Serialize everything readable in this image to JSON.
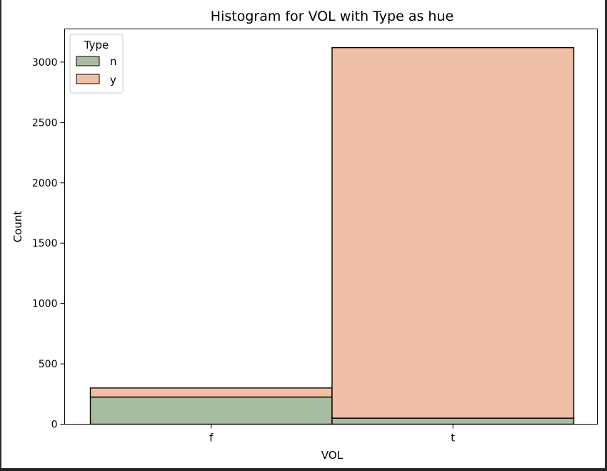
{
  "chart_data": {
    "type": "bar",
    "title": "Histogram for VOL with Type as hue",
    "xlabel": "VOL",
    "ylabel": "Count",
    "categories": [
      "f",
      "t"
    ],
    "series": [
      {
        "name": "n",
        "values": [
          225,
          50
        ],
        "color": "#a8bca0"
      },
      {
        "name": "y",
        "values": [
          75,
          3070
        ],
        "color": "#f0c0a6"
      }
    ],
    "stacked": true,
    "ylim": [
      0,
      3275
    ],
    "yticks": [
      "0",
      "500",
      "1000",
      "1500",
      "2000",
      "2500",
      "3000"
    ],
    "legend": {
      "title": "Type",
      "placement": "top-left"
    },
    "grid": false
  }
}
